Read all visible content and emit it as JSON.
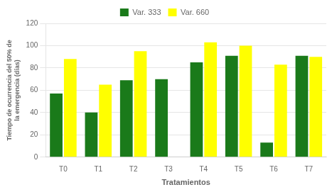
{
  "chart_data": {
    "type": "bar",
    "categories": [
      "T0",
      "T1",
      "T2",
      "T3",
      "T4",
      "T5",
      "T6",
      "T7"
    ],
    "series": [
      {
        "name": "Var. 333",
        "color": "#1a7a1a",
        "values": [
          57,
          40,
          69,
          70,
          85,
          91,
          13,
          91
        ]
      },
      {
        "name": "Var. 660",
        "color": "#ffff00",
        "values": [
          88,
          65,
          95,
          0,
          103,
          100,
          83,
          90
        ]
      }
    ],
    "xlabel": "Tratamientos",
    "ylabel": [
      "Tiempo de ocurrencia del 50% de",
      "la emergencia (días)"
    ],
    "ylim": [
      0,
      120
    ],
    "yticks": [
      0,
      20,
      40,
      60,
      80,
      100,
      120
    ],
    "grid": true,
    "legend": "top"
  }
}
